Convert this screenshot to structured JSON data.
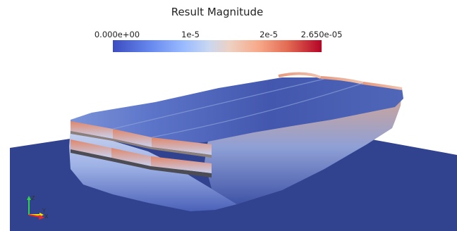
{
  "legend": {
    "title": "Result Magnitude",
    "ticks": [
      "0.000e+00",
      "1e-5",
      "2e-5",
      "2.650e-05"
    ],
    "min": 0,
    "max": 2.65e-05,
    "colormap": "Cool to Warm"
  },
  "axes": {
    "x": "X",
    "y": "Y",
    "z": "Z",
    "x_color": "#e8262b",
    "y_color": "#f2e600",
    "z_color": "#2fd24a"
  },
  "colors": {
    "background": "#ffffff",
    "base_plate": "#31438f",
    "low": "#3b4cc0",
    "high": "#b40426"
  }
}
